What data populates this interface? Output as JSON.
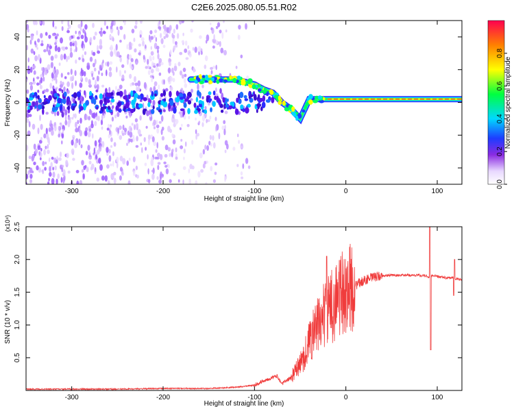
{
  "title": "C2E6.2025.080.05.51.R02",
  "chart_data": [
    {
      "type": "heatmap",
      "xlabel": "Height of straight line (km)",
      "ylabel": "Frequency (Hz)",
      "xlim": [
        -350,
        127
      ],
      "ylim": [
        -50,
        50
      ],
      "xticks": [
        -300,
        -200,
        -100,
        0,
        100
      ],
      "yticks": [
        -40,
        -20,
        0,
        20,
        40
      ],
      "colorbar": {
        "label": "Normalized spectral amplitude",
        "range": [
          0,
          1
        ],
        "ticks": [
          0.0,
          0.2,
          0.4,
          0.6,
          0.8
        ]
      },
      "ridge": {
        "description_points": [
          {
            "x": -170,
            "y": 14
          },
          {
            "x": -140,
            "y": 14
          },
          {
            "x": -120,
            "y": 14
          },
          {
            "x": -100,
            "y": 11
          },
          {
            "x": -90,
            "y": 8
          },
          {
            "x": -80,
            "y": 6
          },
          {
            "x": -70,
            "y": 0
          },
          {
            "x": -60,
            "y": -4
          },
          {
            "x": -50,
            "y": -10
          },
          {
            "x": -40,
            "y": 2
          },
          {
            "x": -20,
            "y": 2
          },
          {
            "x": 0,
            "y": 2
          },
          {
            "x": 50,
            "y": 2
          },
          {
            "x": 100,
            "y": 2
          },
          {
            "x": 127,
            "y": 2
          }
        ]
      }
    },
    {
      "type": "line",
      "xlabel": "Height of straight line (km)",
      "ylabel": "SNR (10 * v/v)",
      "yscale_label": "(x10⁴)",
      "xlim": [
        -350,
        127
      ],
      "ylim": [
        0,
        2.5
      ],
      "xticks": [
        -300,
        -200,
        -100,
        0,
        100
      ],
      "yticks": [
        0.5,
        1.0,
        1.5,
        2.0,
        2.5
      ],
      "series_color": "#f03c3c",
      "x": [
        -350,
        -300,
        -250,
        -200,
        -150,
        -120,
        -100,
        -90,
        -80,
        -75,
        -70,
        -60,
        -50,
        -45,
        -40,
        -35,
        -30,
        -25,
        -20,
        -15,
        -10,
        0,
        10,
        20,
        30,
        40,
        50,
        60,
        70,
        80,
        88,
        92,
        95,
        100,
        110,
        118,
        120,
        127
      ],
      "values": [
        0.02,
        0.02,
        0.02,
        0.03,
        0.03,
        0.05,
        0.08,
        0.15,
        0.2,
        0.22,
        0.1,
        0.2,
        0.4,
        0.55,
        0.75,
        0.9,
        1.0,
        1.15,
        1.2,
        1.3,
        1.4,
        1.52,
        1.6,
        1.68,
        1.73,
        1.75,
        1.76,
        1.76,
        1.76,
        1.76,
        1.75,
        1.72,
        1.76,
        1.74,
        1.72,
        1.72,
        1.7,
        1.7
      ]
    }
  ]
}
